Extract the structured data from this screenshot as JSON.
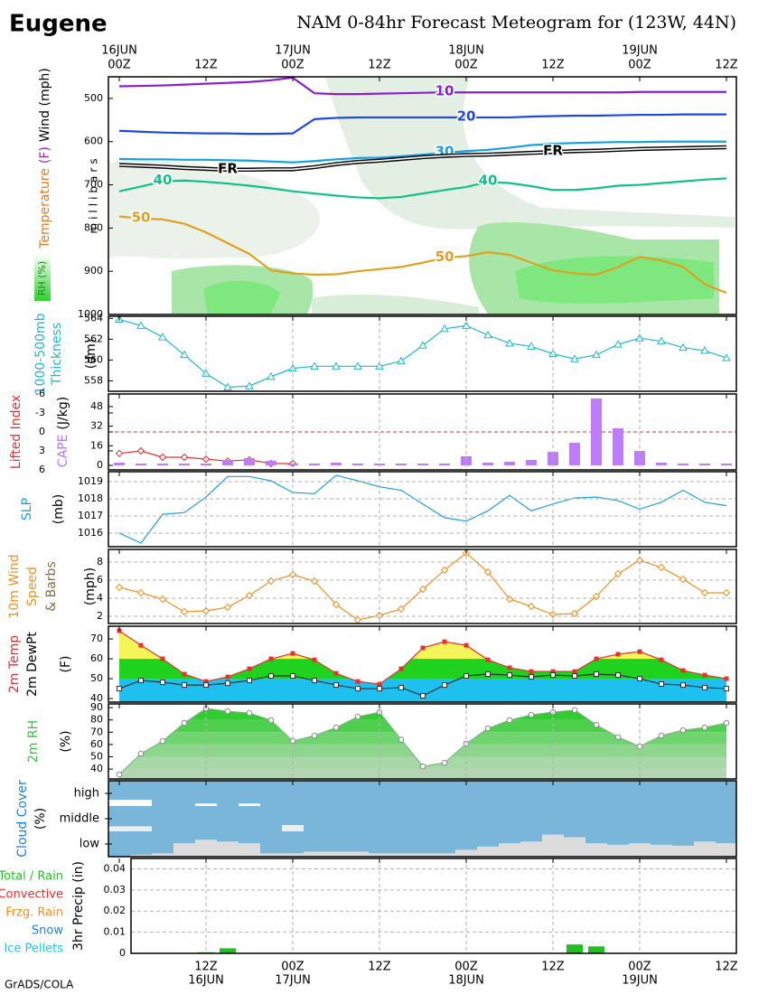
{
  "header": {
    "station": "Eugene",
    "title": "NAM 0-84hr Forecast Meteogram for (123W, 44N)"
  },
  "footer": "GrADS/COLA",
  "time_axis": {
    "categories": [
      "00Z",
      null,
      null,
      null,
      "12Z",
      null,
      null,
      null,
      "00Z",
      null,
      null,
      null,
      "12Z",
      null,
      null,
      null,
      "00Z",
      null,
      null,
      null,
      "12Z",
      null,
      null,
      null,
      "00Z",
      null,
      null,
      null,
      "12Z"
    ],
    "top_dates": [
      "16JUN",
      null,
      null,
      null,
      null,
      null,
      null,
      null,
      "17JUN",
      null,
      null,
      null,
      null,
      null,
      null,
      null,
      "18JUN",
      null,
      null,
      null,
      null,
      null,
      null,
      null,
      "19JUN",
      null,
      null,
      null,
      null
    ],
    "bottom_dates": [
      null,
      null,
      null,
      null,
      "16JUN",
      null,
      null,
      null,
      "17JUN",
      null,
      null,
      null,
      null,
      null,
      null,
      null,
      "18JUN",
      null,
      null,
      null,
      null,
      null,
      null,
      null,
      "19JUN",
      null,
      null,
      null,
      null
    ]
  },
  "chart_data": [
    {
      "type": "contour",
      "ylim": [
        450,
        1000
      ],
      "y_inverted": true,
      "yticks": [
        500,
        600,
        700,
        800,
        900,
        1000
      ],
      "grid": "none",
      "ylabel": [
        [
          {
            "text": "Temperature",
            "color": "#e07b20"
          },
          {
            "text": "(F)",
            "color": "#a020c0"
          },
          {
            "text": "Wind (mph)",
            "color": "#000000"
          }
        ]
      ],
      "rh_label": "RH (%)",
      "axis_label": "millibars",
      "series": [
        {
          "name": "10",
          "color": "#8a1fd0",
          "values": [
            472,
            471,
            470,
            468,
            466,
            464,
            462,
            458,
            452,
            488,
            490,
            490,
            489,
            488,
            487,
            486,
            486,
            486,
            486,
            486,
            486,
            486,
            486,
            486,
            485,
            485,
            485,
            485,
            485
          ]
        },
        {
          "name": "20",
          "color": "#2048e0",
          "values": [
            575,
            577,
            579,
            580,
            581,
            581,
            582,
            582,
            581,
            548,
            545,
            544,
            544,
            544,
            544,
            544,
            544,
            544,
            544,
            542,
            541,
            540,
            540,
            539,
            538,
            538,
            537,
            537,
            537
          ]
        },
        {
          "name": "30",
          "color": "#12a0e6",
          "values": [
            640,
            641,
            641,
            642,
            642,
            643,
            644,
            646,
            648,
            645,
            641,
            638,
            637,
            634,
            630,
            626,
            622,
            619,
            614,
            608,
            605,
            603,
            602,
            601,
            601,
            600,
            600,
            600,
            600
          ]
        },
        {
          "name": "FR",
          "color": "#000000",
          "double": true,
          "values": [
            654,
            656,
            658,
            661,
            663,
            665,
            665,
            664,
            664,
            659,
            652,
            647,
            644,
            640,
            636,
            633,
            631,
            630,
            628,
            626,
            624,
            622,
            621,
            619,
            617,
            616,
            615,
            614,
            613
          ]
        },
        {
          "name": "40",
          "color": "#12c08c",
          "values": [
            715,
            704,
            692,
            690,
            693,
            697,
            702,
            708,
            715,
            720,
            725,
            729,
            731,
            728,
            720,
            712,
            705,
            693,
            696,
            703,
            712,
            712,
            708,
            702,
            700,
            696,
            692,
            688,
            685
          ]
        },
        {
          "name": "50",
          "color": "#e0a020",
          "values": [
            773,
            778,
            780,
            790,
            810,
            835,
            860,
            898,
            905,
            908,
            907,
            900,
            895,
            890,
            880,
            869,
            865,
            856,
            862,
            880,
            898,
            905,
            908,
            890,
            867,
            875,
            890,
            930,
            950
          ]
        }
      ]
    },
    {
      "type": "line",
      "ylim": [
        557,
        564.2
      ],
      "yticks": [
        558,
        560,
        562,
        564
      ],
      "grid": "x",
      "ylabel": [
        [
          {
            "text": "1000-500mb",
            "color": "#20b8c8"
          }
        ],
        [
          {
            "text": "Thickness",
            "color": "#20b8c8"
          }
        ],
        [
          {
            "text": "(dm)",
            "color": "#000000"
          }
        ]
      ],
      "series": [
        {
          "color": "#20b8c8",
          "marker": "triangle",
          "values": [
            563.9,
            563.3,
            562.2,
            560.5,
            558.7,
            557.4,
            557.5,
            558.4,
            559.2,
            559.4,
            559.4,
            559.4,
            559.4,
            559.9,
            561.4,
            563.0,
            563.3,
            562.4,
            561.6,
            561.3,
            560.6,
            560.1,
            560.5,
            561.5,
            562.1,
            561.8,
            561.2,
            560.9,
            560.2
          ]
        }
      ]
    },
    {
      "type": "li_cape",
      "ylim": [
        -6,
        6
      ],
      "y_inverted": true,
      "yticks": [
        -6,
        -3,
        0,
        3,
        6
      ],
      "y2lim": [
        -3.7,
        58.3
      ],
      "y2ticks": [
        0,
        16,
        32,
        48
      ],
      "grid": "x",
      "zero_line": true,
      "ylabel": [
        [
          {
            "text": "Lifted Index",
            "color": "#e03030"
          }
        ],
        [
          {
            "text": "CAPE",
            "color": "#c070f0"
          },
          {
            "text": "(J/kg)",
            "color": "#000000"
          }
        ]
      ],
      "series": [
        {
          "color": "#e03030",
          "marker": "diamond",
          "values": [
            3.4,
            3.0,
            4.0,
            4.0,
            4.3,
            4.6,
            4.4,
            5.0,
            5.0,
            null,
            null,
            null,
            null,
            null,
            null,
            null,
            null,
            null,
            null,
            null,
            null,
            null,
            null,
            null,
            null,
            null,
            null,
            null,
            null
          ]
        },
        {
          "color": "#c07cf6",
          "axis": "y2",
          "kind": "bar",
          "values": [
            2.2,
            1.5,
            1.5,
            1.5,
            1.5,
            4.4,
            5.9,
            3.7,
            1.5,
            1.5,
            2.2,
            1.5,
            1.5,
            1.5,
            1.5,
            1.5,
            7.4,
            2.2,
            3.0,
            4.4,
            11.0,
            18.5,
            54.7,
            30.3,
            11.8,
            2.2,
            1.5,
            1.5,
            1.5
          ]
        }
      ]
    },
    {
      "type": "line",
      "ylim": [
        1015.21,
        1019.58
      ],
      "yticks": [
        1016,
        1017,
        1018,
        1019
      ],
      "grid": "both",
      "ylabel": [
        [
          {
            "text": "SLP",
            "color": "#1e9ee0"
          }
        ],
        [
          {
            "text": "(mb)",
            "color": "#000000"
          }
        ]
      ],
      "series": [
        {
          "color": "#1e9ee0",
          "marker": "none",
          "values": [
            1016.0,
            1015.42,
            1017.1,
            1017.2,
            1018.1,
            1019.3,
            1019.3,
            1019.05,
            1018.37,
            1018.3,
            1019.37,
            1019.05,
            1018.7,
            1018.5,
            1017.7,
            1016.9,
            1016.7,
            1017.3,
            1018.2,
            1017.3,
            1017.7,
            1018.05,
            1018.1,
            1017.9,
            1017.4,
            1017.8,
            1018.5,
            1017.8,
            1017.6
          ]
        }
      ]
    },
    {
      "type": "line",
      "ylim": [
        1.2,
        9.4
      ],
      "yticks": [
        2,
        4,
        6,
        8
      ],
      "grid": "both",
      "ylabel": [
        [
          {
            "text": "10m Wind",
            "color": "#f09020"
          }
        ],
        [
          {
            "text": "Speed",
            "color": "#f09020"
          }
        ],
        [
          {
            "text": "& Barbs",
            "color": "#8a6a40"
          }
        ],
        [
          {
            "text": "(mph)",
            "color": "#000000"
          }
        ]
      ],
      "series": [
        {
          "color": "#f09020",
          "marker": "diamond",
          "values": [
            5.2,
            4.6,
            3.9,
            2.5,
            2.6,
            3.0,
            4.3,
            5.9,
            6.6,
            5.9,
            3.3,
            1.6,
            2.1,
            2.8,
            5.0,
            7.1,
            9.0,
            6.9,
            3.9,
            3.1,
            2.2,
            2.3,
            4.2,
            6.7,
            8.2,
            7.4,
            6.1,
            4.6,
            4.6
          ]
        }
      ]
    },
    {
      "type": "banded_area",
      "ylim": [
        38.2,
        76.4
      ],
      "yticks": [
        40,
        50,
        60,
        70
      ],
      "grid": "none",
      "band_from_tick": 1,
      "band_colors": [
        "#1ec0f0",
        "#1ed21e",
        "#f5f55a",
        "#f5f55a"
      ],
      "ylabel": [
        [
          {
            "text": "2m Temp",
            "color": "#e03030"
          }
        ],
        [
          {
            "text": "2m DewPt",
            "color": "#000000"
          }
        ],
        [
          {
            "text": "(F)",
            "color": "#000000"
          }
        ]
      ],
      "series": [
        {
          "color": "#e83030",
          "marker": "square",
          "area": true,
          "values": [
            74.1,
            66.8,
            60.0,
            52.3,
            48.6,
            50.9,
            55.0,
            60.0,
            62.7,
            59.5,
            52.7,
            48.6,
            47.3,
            55.0,
            65.5,
            68.6,
            66.8,
            59.5,
            55.5,
            53.6,
            53.6,
            53.6,
            60.0,
            62.3,
            63.6,
            59.5,
            54.1,
            51.8,
            50.0
          ]
        },
        {
          "color": "#303030",
          "marker": "open-square",
          "values": [
            45.0,
            49.1,
            48.2,
            46.8,
            46.8,
            47.7,
            49.1,
            51.4,
            51.4,
            49.1,
            46.8,
            45.0,
            45.0,
            45.5,
            41.4,
            46.8,
            51.4,
            52.3,
            51.8,
            50.9,
            51.8,
            51.4,
            52.3,
            51.8,
            50.0,
            47.3,
            46.8,
            45.5,
            45.0
          ]
        }
      ]
    },
    {
      "type": "banded_area",
      "ylim": [
        32,
        93
      ],
      "yticks": [
        40,
        50,
        60,
        70,
        80,
        90
      ],
      "grid": "x",
      "band_from_tick": 0,
      "band_colors": [
        "#b4d4b4",
        "#a8d8a8",
        "#8ed68e",
        "#6ed46e",
        "#4ed04e",
        "#30cc30",
        "#1ec81e"
      ],
      "ylabel": [
        [
          {
            "text": "2m RH",
            "color": "#40c040"
          }
        ],
        [
          {
            "text": "(%)",
            "color": "#000000"
          }
        ]
      ],
      "series": [
        {
          "color": "#7fb47f",
          "marker": "circle",
          "area": true,
          "values": [
            35.6,
            52.5,
            62.8,
            77.5,
            89.3,
            87.0,
            85.6,
            79.7,
            62.8,
            67.2,
            73.8,
            82.6,
            86.3,
            64.0,
            42.2,
            45.1,
            60.6,
            73.1,
            79.7,
            84.1,
            86.3,
            88.0,
            76.0,
            66.0,
            58.4,
            67.2,
            71.6,
            73.8,
            77.5
          ]
        }
      ]
    },
    {
      "type": "cloud",
      "background": "#7ab6da",
      "ylim": [
        0,
        100
      ],
      "grid": "none",
      "ylabel": [
        [
          {
            "text": "Cloud Cover",
            "color": "#2080d0"
          }
        ],
        [
          {
            "text": "(%)",
            "color": "#000000"
          }
        ]
      ],
      "categories": [
        "high",
        "middle",
        "low"
      ],
      "colors": [
        "#ffffff",
        "#eeeeee",
        "#dcdcdc"
      ],
      "values": [
        [
          25,
          25,
          0,
          0,
          10,
          0,
          10,
          0,
          0,
          0,
          0,
          0,
          0,
          0,
          0,
          0,
          0,
          0,
          0,
          0,
          0,
          0,
          0,
          0,
          0,
          0,
          0,
          0,
          0
        ],
        [
          20,
          20,
          0,
          0,
          0,
          0,
          0,
          0,
          25,
          0,
          0,
          0,
          0,
          0,
          0,
          0,
          0,
          0,
          0,
          0,
          0,
          0,
          0,
          0,
          0,
          0,
          0,
          0,
          0
        ],
        [
          0,
          7,
          13,
          53,
          67,
          60,
          53,
          13,
          13,
          20,
          20,
          20,
          13,
          13,
          13,
          13,
          27,
          40,
          53,
          60,
          87,
          77,
          53,
          47,
          53,
          47,
          43,
          60,
          53
        ]
      ]
    },
    {
      "type": "bar",
      "ylim": [
        0,
        0.0449
      ],
      "yticks": [
        0,
        0.01,
        0.02,
        0.03,
        0.04
      ],
      "grid": "both",
      "color": "#20c020",
      "ylabel": [
        [
          {
            "text": "3hr Precip (in)",
            "color": "#000000"
          }
        ]
      ],
      "legend": [
        {
          "name": "Total / Rain",
          "color": "#20c020"
        },
        {
          "name": "Convective",
          "color": "#e03030"
        },
        {
          "name": "Frzg. Rain",
          "color": "#f09020"
        },
        {
          "name": "Snow",
          "color": "#2080e0"
        },
        {
          "name": "Ice Pellets",
          "color": "#20c8e0"
        }
      ],
      "values": [
        0,
        0,
        0,
        0,
        0.0005,
        0.0024,
        0,
        0,
        0,
        0,
        0,
        0,
        0,
        0,
        0,
        0,
        0,
        0,
        0,
        0,
        0,
        0.0042,
        0.0033,
        0,
        0,
        0,
        0,
        0,
        0
      ]
    }
  ]
}
